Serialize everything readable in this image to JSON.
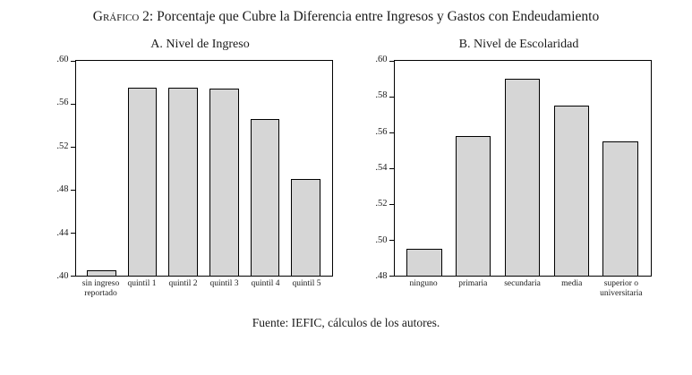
{
  "title_prefix": "Gráfico 2:",
  "title_rest": " Porcentaje que Cubre la Diferencia entre Ingresos y Gastos con Endeudamiento",
  "footer": "Fuente: IEFIC, cálculos de los autores.",
  "bar_fill": "#d6d6d6",
  "chart_data": [
    {
      "type": "bar",
      "title": "A. Nivel de Ingreso",
      "categories": [
        "sin ingreso reportado",
        "quintil 1",
        "quintil 2",
        "quintil 3",
        "quintil 4",
        "quintil 5"
      ],
      "values": [
        0.405,
        0.575,
        0.575,
        0.574,
        0.546,
        0.49
      ],
      "ylabel": "",
      "xlabel": "",
      "ylim": [
        0.4,
        0.6
      ],
      "yticks": [
        0.4,
        0.44,
        0.48,
        0.52,
        0.56,
        0.6
      ],
      "grid": false,
      "legend": false
    },
    {
      "type": "bar",
      "title": "B. Nivel de Escolaridad",
      "categories": [
        "ninguno",
        "primaria",
        "secundaria",
        "media",
        "superior o universitaria"
      ],
      "values": [
        0.495,
        0.558,
        0.59,
        0.575,
        0.555
      ],
      "ylabel": "",
      "xlabel": "",
      "ylim": [
        0.48,
        0.6
      ],
      "yticks": [
        0.48,
        0.5,
        0.52,
        0.54,
        0.56,
        0.58,
        0.6
      ],
      "grid": false,
      "legend": false
    }
  ]
}
